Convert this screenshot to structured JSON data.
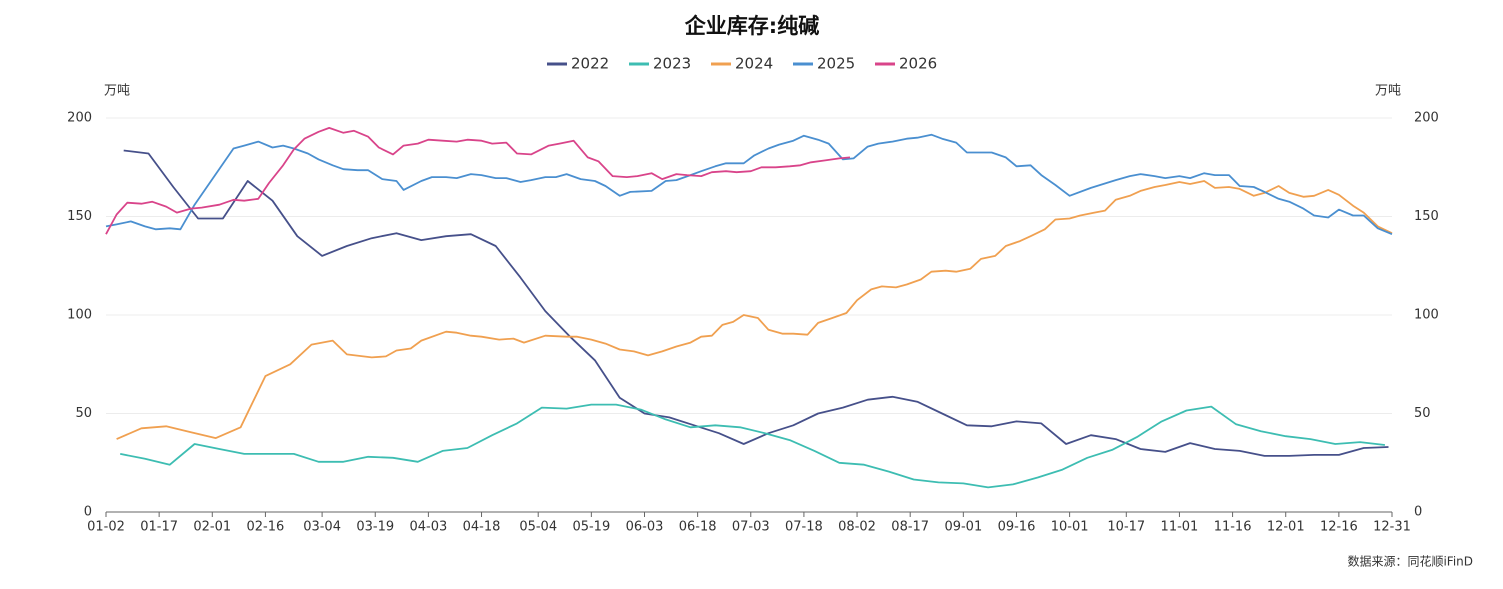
{
  "chart_data": {
    "type": "line",
    "title": "企业库存:纯碱",
    "y_label": "万吨",
    "y2_label": "万吨",
    "source": "数据来源：同花顺iFinD",
    "ylim": [
      0,
      200
    ],
    "yticks": [
      0,
      50,
      100,
      150,
      200
    ],
    "y2lim": [
      0,
      200
    ],
    "y2ticks": [
      0,
      50,
      100,
      150,
      200
    ],
    "xlim": [
      "01-02",
      "12-31"
    ],
    "xticks": [
      "01-02",
      "01-17",
      "02-01",
      "02-16",
      "03-04",
      "03-19",
      "04-03",
      "04-18",
      "05-04",
      "05-19",
      "06-03",
      "06-18",
      "07-03",
      "07-18",
      "08-02",
      "08-17",
      "09-01",
      "09-16",
      "10-01",
      "10-17",
      "11-01",
      "11-16",
      "12-01",
      "12-16",
      "12-31"
    ],
    "grid": true,
    "legend": "top",
    "series": [
      {
        "name": "2022",
        "color": "#46508a",
        "x": [
          "01-07",
          "01-14",
          "01-21",
          "01-28",
          "02-04",
          "02-11",
          "02-18",
          "02-25",
          "03-04",
          "03-11",
          "03-18",
          "03-25",
          "04-01",
          "04-08",
          "04-15",
          "04-22",
          "04-29",
          "05-06",
          "05-13",
          "05-20",
          "05-27",
          "06-03",
          "06-10",
          "06-17",
          "06-24",
          "07-01",
          "07-08",
          "07-15",
          "07-22",
          "07-29",
          "08-05",
          "08-12",
          "08-19",
          "08-26",
          "09-02",
          "09-09",
          "09-16",
          "09-23",
          "09-30",
          "10-07",
          "10-14",
          "10-21",
          "10-28",
          "11-04",
          "11-11",
          "11-18",
          "11-25",
          "12-02",
          "12-09",
          "12-16",
          "12-23",
          "12-30"
        ],
        "values": [
          183.5,
          182,
          165,
          149,
          149,
          168,
          158,
          140,
          130,
          135,
          139,
          141.5,
          138,
          140,
          141,
          135,
          119,
          102,
          89,
          77,
          58,
          50,
          48,
          44,
          40,
          34.5,
          40,
          44,
          50,
          53,
          57,
          58.5,
          56,
          50,
          44,
          43.5,
          46,
          45,
          34.5,
          39,
          37,
          32,
          30.5,
          35,
          32,
          31,
          28.5,
          28.5,
          29,
          29,
          32.5,
          33
        ]
      },
      {
        "name": "2023",
        "color": "#3dbdb2",
        "x": [
          "01-06",
          "01-13",
          "01-20",
          "01-27",
          "02-03",
          "02-10",
          "02-17",
          "02-24",
          "03-03",
          "03-10",
          "03-17",
          "03-24",
          "03-31",
          "04-07",
          "04-14",
          "04-21",
          "04-28",
          "05-05",
          "05-12",
          "05-19",
          "05-26",
          "06-02",
          "06-09",
          "06-16",
          "06-23",
          "06-30",
          "07-07",
          "07-14",
          "07-21",
          "07-28",
          "08-04",
          "08-11",
          "08-18",
          "08-25",
          "09-01",
          "09-08",
          "09-15",
          "09-22",
          "09-29",
          "10-06",
          "10-13",
          "10-20",
          "10-27",
          "11-03",
          "11-10",
          "11-17",
          "11-24",
          "12-01",
          "12-08",
          "12-15",
          "12-22",
          "12-29"
        ],
        "values": [
          29.5,
          27,
          24,
          34.5,
          32,
          29.5,
          29.5,
          29.5,
          25.5,
          25.5,
          28,
          27.5,
          25.5,
          31,
          32.5,
          39,
          45,
          53,
          52.5,
          54.5,
          54.5,
          52,
          47,
          43,
          44,
          43,
          40,
          36.5,
          31,
          25,
          24,
          20.5,
          16.5,
          15,
          14.5,
          12.5,
          14,
          17.5,
          21.5,
          27.5,
          31.5,
          38,
          46,
          51.5,
          53.5,
          44.5,
          41,
          38.5,
          37,
          34.5,
          35.5,
          34
        ]
      },
      {
        "name": "2024",
        "color": "#f0a050",
        "x": [
          "01-05",
          "01-12",
          "01-19",
          "01-26",
          "02-02",
          "02-09",
          "02-16",
          "02-23",
          "03-01",
          "03-07",
          "03-11",
          "03-18",
          "03-22",
          "03-25",
          "03-29",
          "04-01",
          "04-08",
          "04-11",
          "04-15",
          "04-18",
          "04-23",
          "04-27",
          "04-30",
          "05-06",
          "05-12",
          "05-15",
          "05-19",
          "05-23",
          "05-27",
          "05-31",
          "06-04",
          "06-08",
          "06-12",
          "06-16",
          "06-19",
          "06-22",
          "06-25",
          "06-28",
          "07-01",
          "07-05",
          "07-08",
          "07-12",
          "07-15",
          "07-19",
          "07-22",
          "07-26",
          "07-30",
          "08-02",
          "08-06",
          "08-09",
          "08-13",
          "08-16",
          "08-20",
          "08-23",
          "08-27",
          "08-30",
          "09-03",
          "09-06",
          "09-10",
          "09-13",
          "09-17",
          "09-20",
          "09-24",
          "09-27",
          "10-01",
          "10-04",
          "10-08",
          "10-11",
          "10-14",
          "10-18",
          "10-21",
          "10-25",
          "10-28",
          "11-01",
          "11-04",
          "11-08",
          "11-11",
          "11-15",
          "11-18",
          "11-22",
          "11-25",
          "11-29",
          "12-02",
          "12-06",
          "12-09",
          "12-13",
          "12-16",
          "12-20",
          "12-23",
          "12-27",
          "12-31"
        ],
        "values": [
          37,
          42.5,
          43.5,
          40.5,
          37.5,
          43,
          69,
          75,
          85,
          87,
          80,
          78.5,
          79,
          82,
          83,
          87,
          91.5,
          91,
          89.5,
          89,
          87.5,
          88,
          86,
          89.5,
          89,
          89,
          87.5,
          85.5,
          82.5,
          81.5,
          79.5,
          81.5,
          84,
          86,
          89,
          89.5,
          95,
          96.5,
          100,
          98.5,
          92.5,
          90.5,
          90.5,
          90,
          96,
          98.5,
          101,
          107.5,
          113,
          114.5,
          114,
          115.5,
          118,
          122,
          122.5,
          122,
          123.5,
          128.5,
          130,
          135,
          137.5,
          140,
          143.5,
          148.5,
          149,
          150.5,
          152,
          153,
          158.5,
          160.5,
          163,
          165,
          166,
          167.5,
          166.5,
          168,
          164.5,
          165,
          164,
          160.5,
          162,
          165.5,
          162,
          160,
          160.5,
          163.5,
          161,
          155.5,
          152,
          145,
          141.5
        ]
      },
      {
        "name": "2025",
        "color": "#4a8fd0",
        "x": [
          "01-02",
          "01-05",
          "01-09",
          "01-13",
          "01-16",
          "01-20",
          "01-23",
          "01-27",
          "02-07",
          "02-10",
          "02-14",
          "02-18",
          "02-21",
          "02-24",
          "02-28",
          "03-03",
          "03-07",
          "03-10",
          "03-14",
          "03-17",
          "03-21",
          "03-25",
          "03-27",
          "04-01",
          "04-04",
          "04-08",
          "04-11",
          "04-15",
          "04-18",
          "04-22",
          "04-25",
          "04-29",
          "05-02",
          "05-06",
          "05-09",
          "05-12",
          "05-16",
          "05-20",
          "05-23",
          "05-27",
          "05-30",
          "06-05",
          "06-09",
          "06-12",
          "06-16",
          "06-19",
          "06-23",
          "06-26",
          "07-01",
          "07-04",
          "07-08",
          "07-11",
          "07-15",
          "07-18",
          "07-22",
          "07-25",
          "07-29",
          "08-01",
          "08-05",
          "08-08",
          "08-12",
          "08-16",
          "08-19",
          "08-23",
          "08-26",
          "08-30",
          "09-02",
          "09-06",
          "09-09",
          "09-13",
          "09-16",
          "09-20",
          "09-23",
          "09-27",
          "10-01",
          "10-07",
          "10-14",
          "10-18",
          "10-21",
          "10-25",
          "10-28",
          "11-01",
          "11-04",
          "11-08",
          "11-11",
          "11-15",
          "11-18",
          "11-22",
          "11-25",
          "11-29",
          "12-02",
          "12-06",
          "12-09",
          "12-13",
          "12-16",
          "12-20",
          "12-23",
          "12-27",
          "12-31"
        ],
        "values": [
          145,
          146,
          147.5,
          145,
          143.5,
          144,
          143.5,
          156,
          184.5,
          186,
          188,
          185,
          186,
          184.5,
          182,
          179,
          176,
          174,
          173.5,
          173.5,
          169,
          168,
          163.5,
          168,
          170,
          170,
          169.5,
          171.5,
          171,
          169.5,
          169.5,
          167.5,
          168.5,
          170,
          170,
          171.5,
          169,
          168,
          165.5,
          160.5,
          162.5,
          163,
          168,
          168.5,
          171,
          173,
          175.5,
          177,
          177,
          181,
          184.5,
          186.5,
          188.5,
          191,
          189,
          187,
          179,
          179.5,
          185.5,
          187,
          188,
          189.5,
          190,
          191.5,
          189.5,
          187.5,
          182.5,
          182.5,
          182.5,
          180,
          175.5,
          176,
          171,
          166,
          160.5,
          164.5,
          168.5,
          170.5,
          171.5,
          170.5,
          169.5,
          170.5,
          169.5,
          172,
          171,
          171,
          165.5,
          165,
          162.5,
          159,
          157.5,
          154,
          150.5,
          149.5,
          153.5,
          150.5,
          150.5,
          144,
          141
        ]
      },
      {
        "name": "2026",
        "color": "#d9448a",
        "x": [
          "01-02",
          "01-05",
          "01-08",
          "01-12",
          "01-15",
          "01-19",
          "01-22",
          "01-26",
          "01-29",
          "02-03",
          "02-07",
          "02-10",
          "02-14",
          "02-17",
          "02-21",
          "02-24",
          "02-27",
          "03-03",
          "03-06",
          "03-10",
          "03-13",
          "03-17",
          "03-20",
          "03-24",
          "03-27",
          "03-31",
          "04-03",
          "04-07",
          "04-11",
          "04-14",
          "04-18",
          "04-21",
          "04-25",
          "04-28",
          "05-02",
          "05-07",
          "05-10",
          "05-14",
          "05-18",
          "05-21",
          "05-25",
          "05-29",
          "06-01",
          "06-05",
          "06-08",
          "06-12",
          "06-15",
          "06-19",
          "06-22",
          "06-26",
          "06-29",
          "07-03",
          "07-06",
          "07-10",
          "07-14",
          "07-17",
          "07-20",
          "07-24",
          "07-28",
          "07-31"
        ],
        "values": [
          141,
          151,
          157,
          156.5,
          157.5,
          155,
          152,
          154,
          154.5,
          156,
          158.5,
          158,
          159,
          167,
          176,
          184,
          189.5,
          193,
          195,
          192.5,
          193.5,
          190.5,
          185,
          181.5,
          186,
          187,
          189,
          188.5,
          188,
          189,
          188.5,
          187,
          187.5,
          182,
          181.5,
          186,
          187,
          188.5,
          180,
          178,
          170.5,
          170,
          170.5,
          172,
          169,
          171.5,
          171,
          170.5,
          172.5,
          173,
          172.5,
          173,
          175,
          175,
          175.5,
          176,
          177.5,
          178.5,
          179.5,
          180
        ]
      }
    ]
  }
}
